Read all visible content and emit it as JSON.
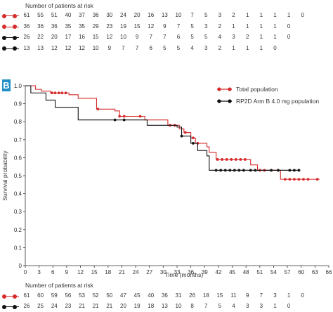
{
  "top_table": {
    "title": "Number of patients at risk",
    "rows": [
      {
        "color": "#d62b2b",
        "values": [
          "61",
          "55",
          "51",
          "40",
          "37",
          "36",
          "30",
          "24",
          "20",
          "16",
          "13",
          "10",
          "7",
          "5",
          "3",
          "2",
          "1",
          "1",
          "1",
          "1",
          "0"
        ]
      },
      {
        "color": "#d62b2b",
        "values": [
          "36",
          "36",
          "36",
          "35",
          "35",
          "29",
          "23",
          "19",
          "15",
          "12",
          "9",
          "7",
          "5",
          "3",
          "2",
          "1",
          "1",
          "1",
          "1",
          "0"
        ]
      },
      {
        "color": "#111111",
        "values": [
          "26",
          "22",
          "20",
          "17",
          "16",
          "15",
          "12",
          "10",
          "9",
          "7",
          "7",
          "6",
          "5",
          "5",
          "4",
          "3",
          "2",
          "1",
          "1",
          "0"
        ]
      },
      {
        "color": "#111111",
        "values": [
          "13",
          "13",
          "12",
          "12",
          "12",
          "10",
          "9",
          "7",
          "7",
          "6",
          "5",
          "5",
          "4",
          "3",
          "2",
          "1",
          "1",
          "1",
          "0"
        ]
      }
    ]
  },
  "panel_label": "B",
  "chart_data": {
    "type": "line",
    "title": "",
    "xlabel": "Time (months)",
    "ylabel": "Survival probability",
    "xlim": [
      0,
      66
    ],
    "ylim": [
      0,
      1.0
    ],
    "x_ticks": [
      0,
      3,
      6,
      9,
      12,
      15,
      18,
      21,
      24,
      27,
      30,
      33,
      36,
      39,
      42,
      45,
      48,
      51,
      54,
      57,
      60,
      63,
      66
    ],
    "y_ticks": [
      0,
      0.1,
      0.2,
      0.3,
      0.4,
      0.5,
      0.6,
      0.7,
      0.8,
      0.9,
      1.0
    ],
    "y_tick_labels": [
      "0",
      "0.1",
      "0.2",
      "0.3",
      "0.4",
      "0.5",
      "0.6",
      "0.7",
      "0.8",
      "0.9",
      "1.0"
    ],
    "grid": false,
    "legend_position": "top-right",
    "series": [
      {
        "name": "Total population",
        "color": "#d62b2b",
        "step_points": [
          [
            0,
            1.0
          ],
          [
            2.2,
            0.98
          ],
          [
            3.5,
            0.97
          ],
          [
            5.5,
            0.96
          ],
          [
            9.5,
            0.95
          ],
          [
            11.5,
            0.93
          ],
          [
            15.5,
            0.87
          ],
          [
            19.5,
            0.86
          ],
          [
            20.5,
            0.83
          ],
          [
            26,
            0.81
          ],
          [
            31,
            0.78
          ],
          [
            33.5,
            0.76
          ],
          [
            34.5,
            0.74
          ],
          [
            36,
            0.71
          ],
          [
            37,
            0.68
          ],
          [
            39.5,
            0.66
          ],
          [
            40,
            0.63
          ],
          [
            41.5,
            0.59
          ],
          [
            49,
            0.56
          ],
          [
            50.5,
            0.53
          ],
          [
            55.5,
            0.48
          ],
          [
            64,
            0.48
          ]
        ],
        "censor_x": [
          5.8,
          6.5,
          7.3,
          8,
          8.8,
          15.8,
          20.5,
          21.5,
          25,
          31.5,
          32.5,
          34.8,
          36.5,
          37.5,
          41.8,
          42.8,
          43.8,
          44.8,
          45.8,
          46.8,
          47.8,
          51,
          52,
          56.5,
          57.5,
          58.5,
          59.5,
          60.5,
          61.5,
          63.5
        ]
      },
      {
        "name": "RP2D Arm B 4.0 mg population",
        "color": "#111111",
        "step_points": [
          [
            0,
            1.0
          ],
          [
            1.2,
            0.96
          ],
          [
            4.5,
            0.92
          ],
          [
            6.5,
            0.88
          ],
          [
            11.5,
            0.81
          ],
          [
            25.5,
            0.81
          ],
          [
            26.5,
            0.78
          ],
          [
            33,
            0.77
          ],
          [
            34,
            0.72
          ],
          [
            36,
            0.68
          ],
          [
            37.5,
            0.64
          ],
          [
            39.5,
            0.61
          ],
          [
            40,
            0.53
          ],
          [
            59.8,
            0.53
          ]
        ],
        "censor_x": [
          19.5,
          21.5,
          34,
          36.5,
          41.5,
          42.5,
          43.5,
          44.5,
          45.5,
          46.5,
          47.5,
          49,
          50,
          53.5,
          55,
          57.5,
          58.5,
          59.5
        ]
      }
    ]
  },
  "bottom_table": {
    "title": "Number of patients at risk",
    "rows": [
      {
        "color": "#d62b2b",
        "values": [
          "61",
          "60",
          "59",
          "56",
          "53",
          "52",
          "50",
          "47",
          "45",
          "40",
          "36",
          "31",
          "26",
          "18",
          "15",
          "11",
          "9",
          "7",
          "3",
          "1",
          "0"
        ]
      },
      {
        "color": "#111111",
        "values": [
          "26",
          "25",
          "24",
          "23",
          "21",
          "21",
          "21",
          "20",
          "19",
          "18",
          "13",
          "10",
          "8",
          "7",
          "5",
          "4",
          "3",
          "3",
          "1",
          "0"
        ]
      }
    ]
  }
}
